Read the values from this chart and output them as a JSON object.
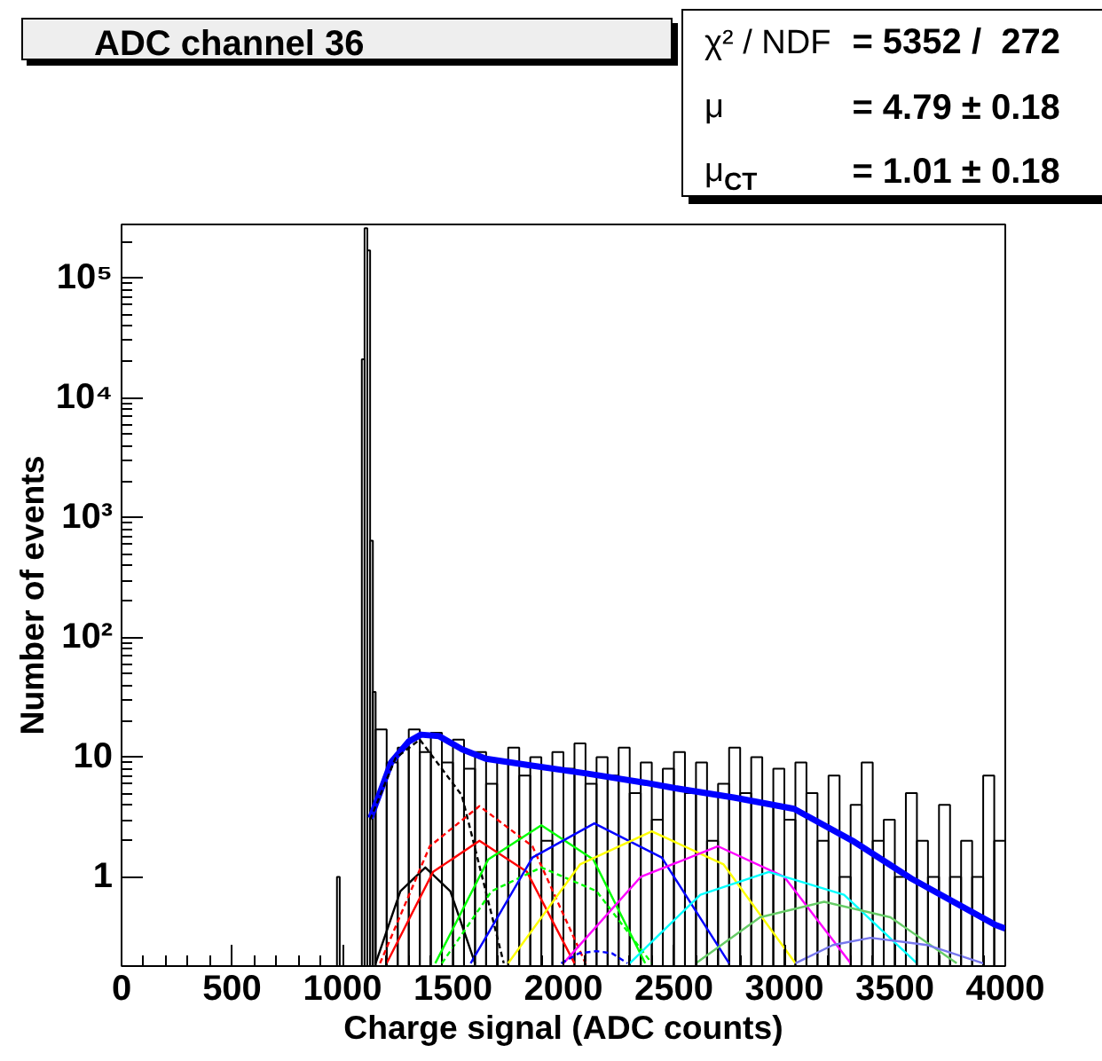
{
  "chart_data": {
    "type": "histogram",
    "title": "ADC channel 36",
    "xlabel": "Charge signal (ADC counts)",
    "ylabel": "Number of events",
    "log": true,
    "grid": false,
    "xlim": [
      0,
      4000
    ],
    "xticks": [
      0,
      500,
      1000,
      1500,
      2000,
      2500,
      3000,
      3500,
      4000
    ],
    "ylim": [
      0.18,
      280000
    ],
    "yticks": [
      1,
      10,
      {
        "value": 100,
        "label": "10²"
      },
      {
        "value": 1000,
        "label": "10³"
      },
      {
        "value": 10000,
        "label": "10⁴"
      },
      {
        "value": 100000,
        "label": "10⁵"
      }
    ],
    "annotations": [
      "χ² / NDF = 5352 /  272",
      "μ = 4.79 ± 0.18",
      "μ$_{CT}$ = 1.01 ± 0.18"
    ],
    "series": [
      {
        "color": "#000000",
        "bins": [
          975,
          987.5,
          1087.5,
          1100,
          1112.5,
          1125,
          1137.5,
          1150,
          1200,
          1250,
          1300,
          1350,
          1400,
          1450,
          1500,
          1550,
          1600,
          1650,
          1700,
          1750,
          1800,
          1850,
          1900,
          1950,
          2000,
          2050,
          2100,
          2150,
          2200,
          2250,
          2300,
          2350,
          2400,
          2450,
          2500,
          2550,
          2600,
          2650,
          2700,
          2750,
          2800,
          2850,
          2900,
          2950,
          3000,
          3050,
          3100,
          3150,
          3200,
          3250,
          3300,
          3350,
          3400,
          3450,
          3500,
          3550,
          3600,
          3650,
          3700,
          3750,
          3800,
          3850,
          3900,
          3950,
          4000
        ],
        "values": [
          1,
          null,
          21000,
          260000,
          170000,
          640,
          35,
          17,
          9,
          12,
          17,
          11,
          16,
          9,
          14,
          8,
          11,
          6,
          9,
          12,
          7,
          10,
          2,
          11,
          8,
          13,
          6,
          10,
          7,
          12,
          5,
          9,
          3,
          8,
          11,
          5,
          9,
          2,
          6,
          12,
          5,
          10,
          4,
          8,
          3,
          9,
          5,
          2,
          7,
          1,
          4,
          9,
          2,
          3,
          1,
          5,
          2,
          1,
          4,
          1,
          2,
          1,
          7,
          2
        ]
      },
      {
        "type": "line",
        "color": "#0000ff",
        "x": [
          1127,
          1221,
          1300,
          1355,
          1436,
          1542,
          1649,
          1836,
          2104,
          2372,
          2506,
          2771,
          3044,
          3309,
          3574,
          3952,
          4000
        ],
        "values": [
          3.1,
          9.1,
          13.5,
          15.4,
          15.0,
          11.6,
          9.7,
          8.6,
          7.3,
          6.1,
          5.5,
          4.6,
          3.7,
          2.0,
          0.97,
          0.4,
          0.37
        ]
      },
      {
        "type": "line",
        "color": "#000000",
        "x": [
          1150,
          1262,
          1375,
          1488,
          1600
        ],
        "values": [
          0.19,
          0.76,
          1.2,
          0.76,
          0.19
        ]
      },
      {
        "type": "line",
        "color": "#000000",
        "line_style": "dashed",
        "x": [
          1125,
          1240,
          1350,
          1540,
          1730
        ],
        "values": [
          3.0,
          9.8,
          14,
          4.8,
          0.19
        ]
      },
      {
        "type": "line",
        "color": "#ff0000",
        "x": [
          1200,
          1410,
          1620,
          1835,
          2050
        ],
        "values": [
          0.19,
          1.1,
          2.0,
          1.1,
          0.19
        ]
      },
      {
        "type": "line",
        "color": "#ff0000",
        "line_style": "dashed",
        "x": [
          1170,
          1395,
          1620,
          1860,
          2100
        ],
        "values": [
          0.19,
          1.8,
          3.9,
          1.8,
          0.19
        ]
      },
      {
        "type": "line",
        "color": "#00ff00",
        "x": [
          1420,
          1660,
          1900,
          2135,
          2370
        ],
        "values": [
          0.19,
          1.4,
          2.7,
          1.4,
          0.19
        ]
      },
      {
        "type": "line",
        "color": "#00ff00",
        "line_style": "dashed",
        "x": [
          1450,
          1675,
          1900,
          2150,
          2400
        ],
        "values": [
          0.19,
          0.76,
          1.2,
          0.76,
          0.19
        ]
      },
      {
        "type": "line",
        "color": "#0000ff",
        "x": [
          1580,
          1860,
          2140,
          2445,
          2750
        ],
        "values": [
          0.19,
          1.45,
          2.8,
          1.45,
          0.19
        ]
      },
      {
        "type": "line",
        "color": "#ffff00",
        "x": [
          1750,
          2075,
          2400,
          2725,
          3050
        ],
        "values": [
          0.19,
          1.27,
          2.4,
          1.27,
          0.19
        ]
      },
      {
        "type": "line",
        "color": "#ff00ff",
        "x": [
          2000,
          2350,
          2700,
          3000,
          3300
        ],
        "values": [
          0.19,
          1.0,
          1.8,
          1.0,
          0.19
        ]
      },
      {
        "type": "line",
        "color": "#00ffff",
        "x": [
          2300,
          2620,
          2930,
          3270,
          3600
        ],
        "values": [
          0.19,
          0.71,
          1.1,
          0.71,
          0.19
        ]
      },
      {
        "type": "line",
        "color": "#66cc66",
        "x": [
          2600,
          2890,
          3180,
          3480,
          3780
        ],
        "values": [
          0.19,
          0.46,
          0.62,
          0.46,
          0.19
        ]
      },
      {
        "type": "line",
        "color": "#7777ee",
        "x": [
          3050,
          3220,
          3390,
          3645,
          3900
        ],
        "values": [
          0.19,
          0.27,
          0.31,
          0.27,
          0.19
        ]
      },
      {
        "type": "line",
        "color": "#0000ff",
        "line_style": "dashed",
        "x": [
          1990,
          2070,
          2150,
          2220,
          2290
        ],
        "values": [
          0.19,
          0.23,
          0.24,
          0.23,
          0.19
        ]
      }
    ]
  }
}
